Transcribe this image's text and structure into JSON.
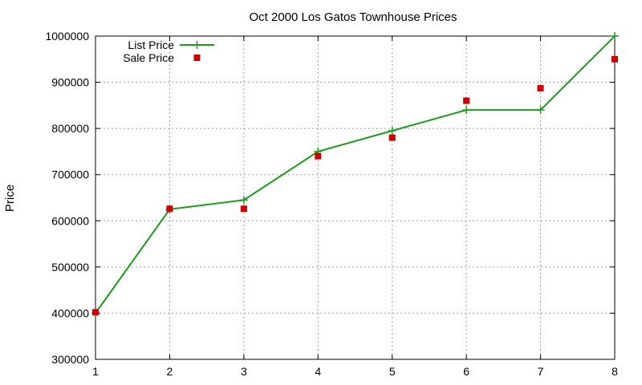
{
  "chart_data": {
    "type": "line",
    "title": "Oct 2000 Los Gatos Townhouse Prices",
    "xlabel": "",
    "ylabel": "Price",
    "xlim": [
      1,
      8
    ],
    "ylim": [
      300000,
      1000000
    ],
    "x_ticks": [
      1,
      2,
      3,
      4,
      5,
      6,
      7,
      8
    ],
    "y_ticks": [
      300000,
      400000,
      500000,
      600000,
      700000,
      800000,
      900000,
      1000000
    ],
    "grid": true,
    "legend_position": "top-left",
    "series": [
      {
        "name": "List Price",
        "style": "line-points",
        "marker": "plus",
        "color": "#1a9e1a",
        "x": [
          1,
          2,
          3,
          4,
          5,
          6,
          7,
          8
        ],
        "y": [
          400000,
          625000,
          645000,
          750000,
          795000,
          840000,
          840000,
          1000000
        ]
      },
      {
        "name": "Sale Price",
        "style": "points",
        "marker": "square",
        "color": "#cc0000",
        "x": [
          1,
          2,
          3,
          4,
          5,
          6,
          7,
          8
        ],
        "y": [
          402000,
          626000,
          626000,
          740000,
          780000,
          860000,
          887000,
          950000
        ]
      }
    ]
  }
}
